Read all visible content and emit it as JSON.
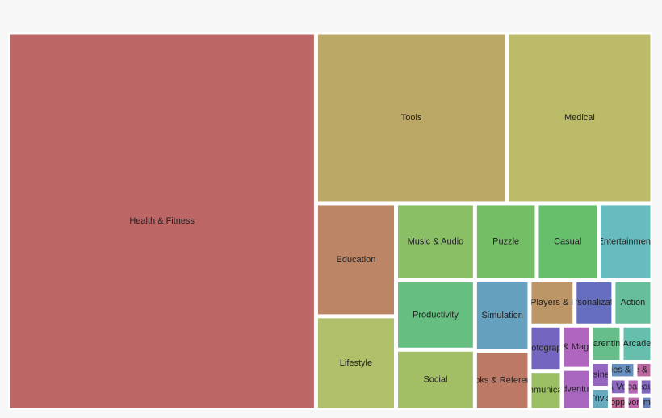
{
  "chart_data": {
    "type": "treemap",
    "labels": [
      "Health & Fitness",
      "Tools",
      "Medical",
      "Education",
      "Lifestyle",
      "Music & Audio",
      "Productivity",
      "Social",
      "Puzzle",
      "Casual",
      "Entertainment",
      "Simulation",
      "Books & Reference",
      "Video Players & Editors",
      "Personalization",
      "Action",
      "Photography",
      "Communication",
      "News & Magazines",
      "Adventure",
      "Parenting",
      "Arcade",
      "Business",
      "Trivia",
      "Libraries & Demo",
      "House & Home",
      "Auto & Vehicles",
      "Shopping",
      "Board",
      "Beauty",
      "Word",
      "Comics"
    ],
    "values": [
      166000,
      46600,
      35500,
      12900,
      10700,
      8700,
      7800,
      6800,
      6800,
      6800,
      5900,
      5500,
      4600,
      2900,
      2500,
      2500,
      2100,
      1800,
      1800,
      1700,
      1600,
      1600,
      700,
      600,
      600,
      400,
      400,
      350,
      320,
      310,
      300,
      230
    ],
    "colors": [
      "#bc6666",
      "#bca866",
      "#bcbb6a",
      "#bc8566",
      "#b0bf6a",
      "#8abf66",
      "#66bf80",
      "#a3bf66",
      "#74bf66",
      "#66bf6a",
      "#66bcbf",
      "#66a0bf",
      "#bc7a66",
      "#bc9666",
      "#666fbf",
      "#66bf9a",
      "#7466bf",
      "#9cbf66",
      "#b066bf",
      "#a866bf",
      "#66bf8a",
      "#66bfad",
      "#9466bf",
      "#66aabf",
      "#6690bf",
      "#bc66a0",
      "#8a66bf",
      "#bc6690",
      "#b866b8",
      "#8066bf",
      "#bc66a8",
      "#6680bf"
    ]
  }
}
